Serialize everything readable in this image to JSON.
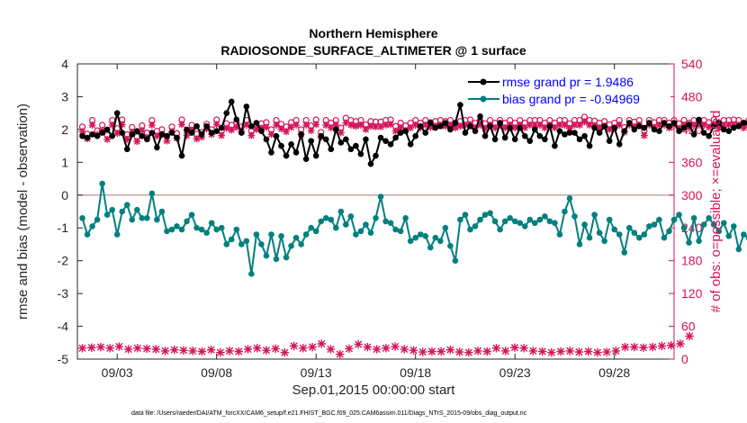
{
  "chart_data": {
    "type": "line",
    "title": "Northern Hemisphere",
    "subtitle": "RADIOSONDE_SURFACE_ALTIMETER @ 1 surface",
    "xlabel": "Sep.01,2015 00:00:00 start",
    "ylabel": "rmse and bias (model - observation)",
    "ylabel_right": "# of obs: o=possible; ×=evaluated",
    "x_tick_labels": [
      "09/03",
      "09/08",
      "09/13",
      "09/18",
      "09/23",
      "09/28"
    ],
    "x_tick_positions": [
      3,
      8,
      13,
      18,
      23,
      28
    ],
    "xlim": [
      1.0,
      31.0
    ],
    "ylim": [
      -5,
      4
    ],
    "ylim_right": [
      0,
      540
    ],
    "y_ticks": [
      4,
      3,
      2,
      1,
      0,
      -1,
      -2,
      -3,
      -4,
      -5
    ],
    "y_ticks_right": [
      540,
      480,
      420,
      360,
      300,
      240,
      180,
      120,
      60,
      0
    ],
    "legend": {
      "location": "top-right",
      "entries": [
        "rmse grand pr = 1.9486",
        "bias grand pr = -0.94969"
      ]
    },
    "colors": {
      "rmse": "#000000",
      "bias": "#00807f",
      "obs": "#d4145a",
      "zero_line": "#c8a5a5",
      "legend_text": "#0000ff"
    },
    "x_start": 1.25,
    "x_step": 0.25,
    "series": [
      {
        "name": "rmse",
        "values": [
          1.8,
          1.75,
          1.85,
          1.8,
          1.9,
          2.0,
          1.8,
          2.5,
          1.9,
          1.4,
          1.85,
          1.95,
          1.8,
          1.7,
          1.9,
          1.45,
          1.85,
          1.8,
          1.9,
          1.75,
          1.2,
          2.0,
          1.9,
          2.1,
          1.85,
          2.1,
          1.9,
          1.95,
          2.05,
          2.5,
          2.85,
          2.3,
          1.9,
          2.7,
          2.1,
          2.2,
          1.95,
          1.7,
          1.3,
          1.8,
          1.5,
          1.2,
          1.55,
          1.3,
          1.85,
          1.1,
          1.65,
          1.2,
          1.8,
          1.7,
          1.4,
          2.0,
          1.6,
          1.7,
          1.4,
          1.5,
          1.25,
          1.7,
          0.95,
          1.2,
          1.75,
          1.65,
          1.55,
          1.75,
          1.9,
          1.95,
          1.55,
          1.8,
          2.1,
          1.9,
          2.2,
          2.05,
          2.1,
          2.2,
          2.0,
          2.2,
          2.75,
          1.9,
          2.1,
          1.95,
          2.4,
          1.8,
          2.1,
          1.7,
          2.2,
          1.75,
          2.05,
          1.7,
          2.05,
          1.8,
          1.65,
          2.0,
          1.8,
          1.7,
          2.1,
          1.5,
          1.95,
          1.85,
          1.9,
          1.9,
          1.7,
          1.8,
          1.5,
          2.05,
          1.9,
          2.1,
          1.65,
          2.05,
          1.55,
          1.95,
          2.2,
          2.0,
          2.1,
          2.05,
          2.2,
          2.0,
          1.95,
          2.2,
          2.1,
          2.2,
          1.95,
          2.05,
          2.15,
          1.85,
          2.3,
          1.9,
          1.8,
          2.1,
          2.2,
          2.0,
          1.95,
          2.05,
          2.1,
          2.2,
          2.2,
          2.45,
          2.3,
          2.0,
          2.1,
          1.9,
          1.85,
          2.0,
          1.9,
          2.1,
          2.05,
          1.75,
          1.9,
          1.55,
          2.05,
          2.15,
          1.9,
          1.7,
          2.1,
          2.15,
          2.1,
          2.05,
          1.9,
          2.0,
          2.2,
          2.15,
          2.05,
          2.0,
          2.05,
          2.1,
          1.8,
          1.7,
          2.0,
          1.95,
          1.95,
          2.1,
          1.8,
          1.95,
          1.8,
          1.6,
          1.85,
          1.7,
          1.6
        ]
      },
      {
        "name": "bias",
        "values": [
          -0.7,
          -1.2,
          -0.95,
          -0.75,
          0.35,
          -0.6,
          -0.45,
          -1.2,
          -0.5,
          -0.3,
          -0.75,
          -0.45,
          -0.7,
          -0.7,
          0.05,
          -0.75,
          -0.5,
          -1.1,
          -1.05,
          -0.95,
          -1.05,
          -0.8,
          -0.6,
          -1.0,
          -1.05,
          -1.15,
          -0.85,
          -1.05,
          -1.0,
          -1.5,
          -1.35,
          -1.05,
          -1.5,
          -1.4,
          -2.4,
          -1.2,
          -1.5,
          -1.85,
          -1.2,
          -1.95,
          -1.25,
          -1.9,
          -1.55,
          -1.3,
          -1.5,
          -1.2,
          -1.0,
          -1.1,
          -0.8,
          -0.7,
          -0.75,
          -1.0,
          -0.5,
          -0.9,
          -0.65,
          -1.2,
          -1.1,
          -0.9,
          -1.15,
          -0.7,
          -0.05,
          -0.8,
          -0.85,
          -1.05,
          -1.1,
          -0.7,
          -1.4,
          -1.3,
          -1.2,
          -1.25,
          -1.6,
          -1.3,
          -1.4,
          -1.0,
          -1.55,
          -2.0,
          -0.75,
          -0.6,
          -1.05,
          -0.95,
          -0.75,
          -0.6,
          -0.55,
          -0.8,
          -1.05,
          -0.8,
          -0.7,
          -0.8,
          -0.85,
          -0.95,
          -0.75,
          -0.85,
          -0.75,
          -0.65,
          -0.8,
          -0.85,
          -1.2,
          -0.5,
          -0.1,
          -0.65,
          -1.5,
          -0.9,
          -1.3,
          -0.6,
          -1.15,
          -1.4,
          -0.75,
          -1.05,
          -1.2,
          -1.75,
          -1.0,
          -1.15,
          -1.3,
          -1.2,
          -0.95,
          -0.9,
          -0.75,
          -1.3,
          -1.1,
          -0.75,
          -0.6,
          -1.0,
          -1.45,
          -0.7,
          -1.4,
          -0.9,
          -0.7,
          -0.9,
          -1.1,
          -0.85,
          -1.25,
          -0.95,
          -1.65,
          -1.2,
          -1.3,
          -1.1,
          -1.2,
          -1.55,
          -1.85,
          -1.4,
          -1.35,
          -1.1,
          -1.2,
          -1.4,
          -0.85,
          -1.6,
          -1.3,
          -1.3,
          -1.05,
          -1.0,
          -1.3,
          -1.35,
          -1.3,
          -1.15,
          -1.1,
          -0.9,
          -0.75,
          -1.2,
          -0.75,
          -0.85,
          -0.45,
          -0.75,
          -0.7,
          -1.3,
          -1.2,
          -0.35,
          -1.0,
          -1.15,
          -1.0,
          -0.9,
          -0.75,
          -0.3
        ]
      },
      {
        "name": "obs_possible",
        "axis": "right",
        "values": [
          425,
          412,
          437,
          418,
          428,
          410,
          437,
          422,
          438,
          411,
          424,
          407,
          427,
          414,
          437,
          417,
          420,
          408,
          425,
          413,
          438,
          418,
          428,
          412,
          415,
          430,
          420,
          438,
          418,
          431,
          428,
          433,
          425,
          437,
          418,
          429,
          431,
          433,
          420,
          437,
          430,
          425,
          433,
          437,
          420,
          437,
          427,
          438,
          415,
          437,
          432,
          437,
          423,
          441,
          437,
          435,
          437,
          429,
          435,
          434,
          434,
          437,
          438,
          426,
          432,
          427,
          432,
          437,
          432,
          437,
          433,
          435,
          437,
          435,
          437,
          432,
          435,
          437,
          438,
          432,
          437,
          431,
          437,
          432,
          437,
          432,
          437,
          432,
          437,
          432,
          437,
          437,
          437,
          432,
          437,
          432,
          437,
          437,
          431,
          437,
          437,
          443,
          437,
          436,
          432,
          435,
          429,
          432,
          437,
          424,
          437,
          434,
          437,
          418,
          437,
          433,
          437,
          437,
          432,
          437,
          431,
          437,
          432,
          437,
          437,
          437,
          433,
          438,
          432,
          437,
          437,
          438,
          437,
          432,
          437,
          433,
          437,
          436,
          432,
          437,
          432,
          430,
          437,
          426,
          437,
          430,
          433,
          437,
          430,
          437,
          434,
          437,
          437,
          438,
          437,
          437,
          432,
          438,
          437,
          438,
          437,
          431,
          437,
          430,
          437,
          437,
          432,
          437,
          437,
          432,
          437,
          432,
          432
        ]
      },
      {
        "name": "obs_evaluated",
        "axis": "right",
        "values": [
          416,
          403,
          428,
          411,
          418,
          402,
          428,
          413,
          429,
          402,
          415,
          398,
          418,
          405,
          428,
          408,
          411,
          399,
          416,
          404,
          429,
          409,
          419,
          403,
          406,
          421,
          411,
          429,
          409,
          422,
          419,
          424,
          416,
          428,
          409,
          420,
          422,
          424,
          411,
          428,
          421,
          416,
          424,
          428,
          411,
          428,
          418,
          429,
          406,
          428,
          423,
          428,
          414,
          432,
          428,
          426,
          428,
          420,
          426,
          425,
          425,
          428,
          429,
          417,
          423,
          418,
          423,
          428,
          423,
          428,
          424,
          426,
          428,
          426,
          428,
          423,
          426,
          428,
          429,
          423,
          428,
          422,
          428,
          423,
          428,
          423,
          428,
          423,
          428,
          423,
          428,
          428,
          428,
          423,
          428,
          423,
          428,
          428,
          422,
          428,
          428,
          434,
          428,
          427,
          423,
          426,
          420,
          423,
          428,
          415,
          428,
          425,
          428,
          409,
          428,
          424,
          428,
          428,
          423,
          428,
          422,
          428,
          423,
          428,
          428,
          428,
          424,
          429,
          423,
          428,
          428,
          429,
          428,
          423,
          428,
          424,
          428,
          427,
          423,
          428,
          423,
          421,
          428,
          417,
          428,
          421,
          424,
          428,
          421,
          428,
          425,
          428,
          428,
          429,
          428,
          428,
          423,
          429,
          428,
          429,
          428,
          422,
          428,
          421,
          428,
          428,
          423,
          428,
          428,
          423,
          428,
          423,
          423
        ]
      },
      {
        "name": "bottom_count",
        "axis": "right",
        "values": [
          20,
          21,
          22,
          20,
          23,
          18,
          20,
          19,
          18,
          15,
          17,
          16,
          15,
          14,
          17,
          12,
          15,
          14,
          18,
          20,
          16,
          19,
          12,
          24,
          20,
          22,
          28,
          18,
          9,
          19,
          27,
          22,
          18,
          20,
          23,
          18,
          16,
          13,
          14,
          14,
          17,
          13,
          12,
          15,
          14,
          20,
          15,
          21,
          20,
          15,
          14,
          12,
          14,
          15,
          13,
          14,
          12,
          13,
          15,
          22,
          22,
          21,
          22,
          24,
          25,
          28,
          42
        ]
      }
    ]
  },
  "footer_text": "data file: /Users/raeder/DAI/ATM_forcXX/CAM6_setup/f.e21.FHIST_BGC.f09_025.CAM6assim.011/Diags_NTrS_2015-09/obs_diag_output.nc"
}
